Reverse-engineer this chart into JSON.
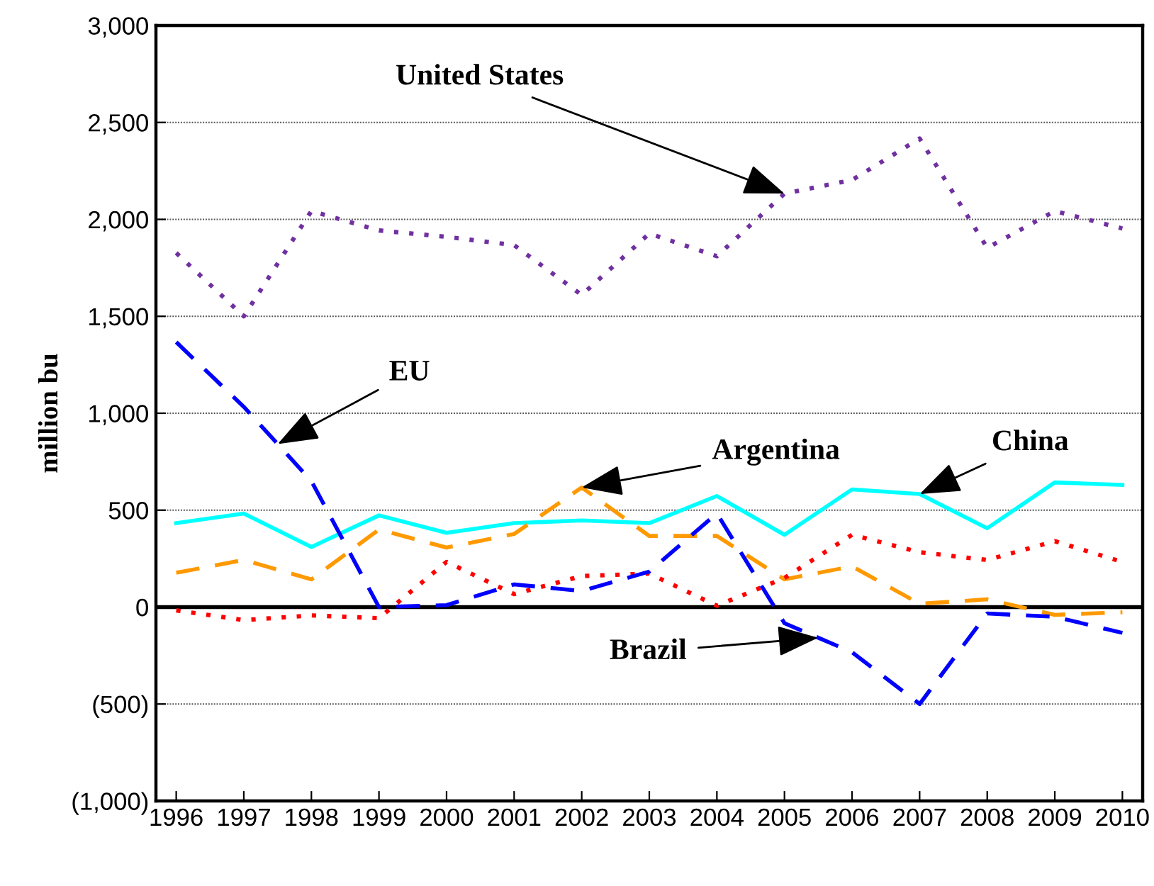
{
  "chart_data": {
    "type": "line",
    "ylabel": "million bu",
    "x": [
      1996,
      1997,
      1998,
      1999,
      2000,
      2001,
      2002,
      2003,
      2004,
      2005,
      2006,
      2007,
      2008,
      2009,
      2010
    ],
    "series": [
      {
        "color": "#7030a0",
        "line_style": "dotted",
        "values": [
          1827,
          1500,
          2043,
          1943,
          1910,
          1867,
          1610,
          1927,
          1810,
          2133,
          2203,
          2417,
          1853,
          2043,
          1953
        ]
      },
      {
        "color": "#00ffff",
        "line_style": "solid",
        "values": [
          433,
          483,
          310,
          473,
          383,
          433,
          447,
          433,
          573,
          373,
          607,
          583,
          407,
          643,
          630
        ]
      },
      {
        "color": "#ff9900",
        "line_style": "dashed",
        "values": [
          177,
          243,
          143,
          400,
          307,
          377,
          617,
          367,
          367,
          143,
          210,
          17,
          40,
          -40,
          -27
        ]
      },
      {
        "color": "#ff0000",
        "line_style": "dotted",
        "values": [
          -17,
          -67,
          -43,
          -57,
          233,
          67,
          160,
          173,
          7,
          150,
          373,
          283,
          243,
          340,
          233
        ]
      },
      {
        "color": "#0000ff",
        "line_style": "dashed",
        "values": [
          1367,
          1033,
          650,
          0,
          10,
          117,
          83,
          183,
          483,
          -83,
          -233,
          -500,
          -33,
          -50,
          -133
        ]
      }
    ],
    "annotations": [
      {
        "text": "United States",
        "x": 2005,
        "y": 2133
      },
      {
        "text": "EU",
        "x": 1997.5,
        "y": 841
      },
      {
        "text": "Argentina",
        "x": 2002,
        "y": 617
      },
      {
        "text": "China",
        "x": 2007,
        "y": 583
      },
      {
        "text": "Brazil",
        "x": 2005.5,
        "y": -158
      }
    ],
    "xlim": [
      1995.7,
      2010.3
    ],
    "xticks": [
      1996,
      1997,
      1998,
      1999,
      2000,
      2001,
      2002,
      2003,
      2004,
      2005,
      2006,
      2007,
      2008,
      2009,
      2010
    ],
    "ylim": [
      -1000,
      3000
    ],
    "yticks": [
      {
        "value": -1000,
        "label": "(1,000)"
      },
      {
        "value": -500,
        "label": "(500)"
      },
      0,
      {
        "value": 500,
        "label": "500"
      },
      {
        "value": 1000,
        "label": "1,000"
      },
      {
        "value": 1500,
        "label": "1,500"
      },
      {
        "value": 2000,
        "label": "2,000"
      },
      {
        "value": 2500,
        "label": "2,500"
      },
      {
        "value": 3000,
        "label": "3,000"
      }
    ],
    "ref_lines": [
      {
        "axis": "y",
        "value": 0,
        "color": "#000000",
        "line_style": "solid"
      }
    ],
    "grid": "y",
    "legend": false,
    "marker": "none"
  }
}
